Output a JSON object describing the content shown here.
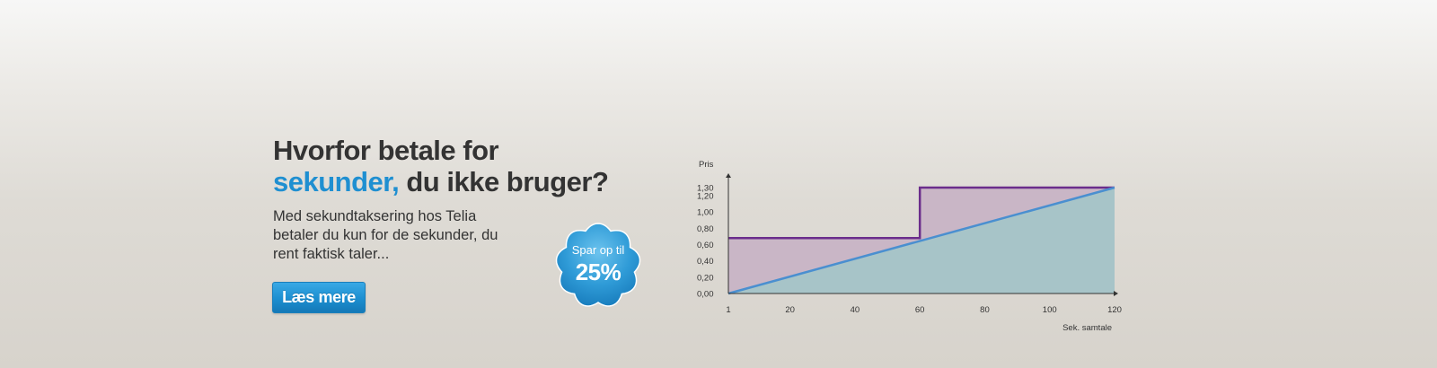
{
  "headline": {
    "line1": "Hvorfor betale for",
    "accent": "sekunder,",
    "line2_rest": " du ikke bruger?"
  },
  "body_text": "Med sekundtaksering hos Telia\nbetaler du kun for de sekunder, du\nrent faktisk taler...",
  "cta_label": "Læs mere",
  "badge": {
    "line1": "Spar op til",
    "line2": "25%"
  },
  "colors": {
    "accent": "#1f8fd1",
    "text": "#333333",
    "per_minute": "#6b2d8c",
    "per_second": "#4a8fd0"
  },
  "chart_data": {
    "type": "area",
    "ylabel": "Pris",
    "xlabel": "Sek. samtale",
    "y_ticks": [
      "0,00",
      "0,20",
      "0,40",
      "0,60",
      "0,80",
      "1,00",
      "1,20",
      "1,30"
    ],
    "y_tick_values": [
      0,
      0.2,
      0.4,
      0.6,
      0.8,
      1.0,
      1.2,
      1.3
    ],
    "x_ticks": [
      "1",
      "20",
      "40",
      "60",
      "80",
      "100",
      "120"
    ],
    "x_tick_values": [
      1,
      20,
      40,
      60,
      80,
      100,
      120
    ],
    "xlim": [
      1,
      120
    ],
    "ylim": [
      0,
      1.3
    ],
    "series": [
      {
        "values": [
          [
            1,
            0.68
          ],
          [
            60,
            0.68
          ],
          [
            60,
            1.3
          ],
          [
            120,
            1.3
          ]
        ],
        "color": "#6b2d8c",
        "fill": "#c9b6c6"
      },
      {
        "values": [
          [
            1,
            0
          ],
          [
            120,
            1.3
          ]
        ],
        "color": "#4a8fd0",
        "fill": "#a7c4c8"
      }
    ],
    "grid": false
  }
}
